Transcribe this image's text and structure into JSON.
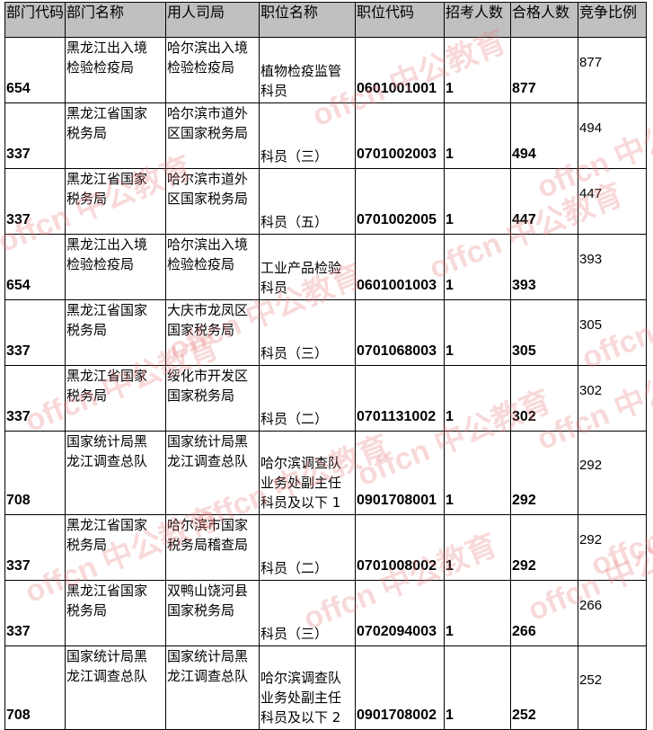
{
  "watermark": "offcn 中公教育",
  "headers": [
    "部门代码",
    "部门名称",
    "用人司局",
    "职位名称",
    "职位代码",
    "招考人数",
    "合格人数",
    "竞争比例"
  ],
  "rows": [
    {
      "dept_code": "654",
      "dept_name": [
        "黑龙江出入境",
        "检验检疫局"
      ],
      "bureau": [
        "哈尔滨出入境",
        "检验检疫局"
      ],
      "position": [
        "植物检疫监管",
        "科员"
      ],
      "pos_code": "0601001001",
      "recruit": "1",
      "qualified": "877",
      "ratio": "877"
    },
    {
      "dept_code": "337",
      "dept_name": [
        "黑龙江省国家",
        "税务局"
      ],
      "bureau": [
        "哈尔滨市道外",
        "区国家税务局"
      ],
      "position": [
        "",
        "科员（三）"
      ],
      "pos_code": "0701002003",
      "recruit": "1",
      "qualified": "494",
      "ratio": "494"
    },
    {
      "dept_code": "337",
      "dept_name": [
        "黑龙江省国家",
        "税务局"
      ],
      "bureau": [
        "哈尔滨市道外",
        "区国家税务局"
      ],
      "position": [
        "",
        "科员（五）"
      ],
      "pos_code": "0701002005",
      "recruit": "1",
      "qualified": "447",
      "ratio": "447"
    },
    {
      "dept_code": "654",
      "dept_name": [
        "黑龙江出入境",
        "检验检疫局"
      ],
      "bureau": [
        "哈尔滨出入境",
        "检验检疫局"
      ],
      "position": [
        "工业产品检验",
        "科员"
      ],
      "pos_code": "0601001003",
      "recruit": "1",
      "qualified": "393",
      "ratio": "393"
    },
    {
      "dept_code": "337",
      "dept_name": [
        "黑龙江省国家",
        "税务局"
      ],
      "bureau": [
        "大庆市龙凤区",
        "国家税务局"
      ],
      "position": [
        "",
        "科员（三）"
      ],
      "pos_code": "0701068003",
      "recruit": "1",
      "qualified": "305",
      "ratio": "305"
    },
    {
      "dept_code": "337",
      "dept_name": [
        "黑龙江省国家",
        "税务局"
      ],
      "bureau": [
        "绥化市开发区",
        "国家税务局"
      ],
      "position": [
        "",
        "科员（二）"
      ],
      "pos_code": "0701131002",
      "recruit": "1",
      "qualified": "302",
      "ratio": "302"
    },
    {
      "dept_code": "708",
      "dept_name": [
        "国家统计局黑",
        "龙江调查总队"
      ],
      "bureau": [
        "国家统计局黑",
        "龙江调查总队"
      ],
      "position": [
        "哈尔滨调查队",
        "业务处副主任",
        "科员及以下 1"
      ],
      "pos_code": "0901708001",
      "recruit": "1",
      "qualified": "292",
      "ratio": "292"
    },
    {
      "dept_code": "337",
      "dept_name": [
        "黑龙江省国家",
        "税务局"
      ],
      "bureau": [
        "哈尔滨市国家",
        "税务局稽查局"
      ],
      "position": [
        "",
        "科员（二）"
      ],
      "pos_code": "0701008002",
      "recruit": "1",
      "qualified": "292",
      "ratio": "292"
    },
    {
      "dept_code": "337",
      "dept_name": [
        "黑龙江省国家",
        "税务局"
      ],
      "bureau": [
        "双鸭山饶河县",
        "国家税务局"
      ],
      "position": [
        "",
        "科员（三）"
      ],
      "pos_code": "0702094003",
      "recruit": "1",
      "qualified": "266",
      "ratio": "266"
    },
    {
      "dept_code": "708",
      "dept_name": [
        "国家统计局黑",
        "龙江调查总队"
      ],
      "bureau": [
        "国家统计局黑",
        "龙江调查总队"
      ],
      "position": [
        "哈尔滨调查队",
        "业务处副主任",
        "科员及以下 2"
      ],
      "pos_code": "0901708002",
      "recruit": "1",
      "qualified": "252",
      "ratio": "252"
    }
  ]
}
